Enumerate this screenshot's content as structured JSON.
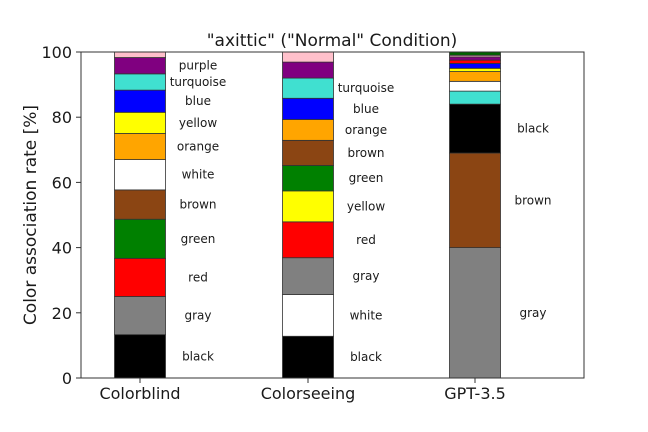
{
  "chart_data": {
    "type": "bar",
    "stacked": true,
    "title": "\"axittic\" (\"Normal\" Condition)",
    "xlabel": "",
    "ylabel": "Color association rate [%]",
    "ylim": [
      0,
      100
    ],
    "yticks": [
      "0",
      "20",
      "40",
      "60",
      "80",
      "100"
    ],
    "grid": false,
    "categories": [
      "Colorblind",
      "Colorseeing",
      "GPT-3.5"
    ],
    "color_map": {
      "black": "#000000",
      "gray": "#808080",
      "white": "#ffffff",
      "red": "#ff0000",
      "green": "#008000",
      "brown": "#8b4513",
      "orange": "#ffa500",
      "yellow": "#ffff00",
      "blue": "#0000ff",
      "turquoise": "#40e0d0",
      "purple": "#800080",
      "pink": "#ffc0cb",
      "darkgreen": "#006400"
    },
    "stacks": [
      {
        "category": "Colorblind",
        "segments": [
          {
            "color": "black",
            "label": "black",
            "value": 13.3
          },
          {
            "color": "gray",
            "label": "gray",
            "value": 11.7
          },
          {
            "color": "red",
            "label": "red",
            "value": 11.7
          },
          {
            "color": "green",
            "label": "green",
            "value": 12.0
          },
          {
            "color": "brown",
            "label": "brown",
            "value": 9.0
          },
          {
            "color": "white",
            "label": "white",
            "value": 9.3
          },
          {
            "color": "orange",
            "label": "orange",
            "value": 8.0
          },
          {
            "color": "yellow",
            "label": "yellow",
            "value": 6.5
          },
          {
            "color": "blue",
            "label": "blue",
            "value": 6.8
          },
          {
            "color": "turquoise",
            "label": "turquoise",
            "value": 5.0
          },
          {
            "color": "purple",
            "label": "purple",
            "value": 5.0
          },
          {
            "color": "pink",
            "label": "",
            "value": 1.7
          }
        ]
      },
      {
        "category": "Colorseeing",
        "segments": [
          {
            "color": "black",
            "label": "black",
            "value": 12.8
          },
          {
            "color": "white",
            "label": "white",
            "value": 12.8
          },
          {
            "color": "gray",
            "label": "gray",
            "value": 11.3
          },
          {
            "color": "red",
            "label": "red",
            "value": 11.0
          },
          {
            "color": "yellow",
            "label": "yellow",
            "value": 9.5
          },
          {
            "color": "green",
            "label": "green",
            "value": 7.8
          },
          {
            "color": "brown",
            "label": "brown",
            "value": 7.7
          },
          {
            "color": "orange",
            "label": "orange",
            "value": 6.4
          },
          {
            "color": "blue",
            "label": "blue",
            "value": 6.5
          },
          {
            "color": "turquoise",
            "label": "turquoise",
            "value": 6.2
          },
          {
            "color": "purple",
            "label": "",
            "value": 4.9
          },
          {
            "color": "pink",
            "label": "",
            "value": 3.1
          }
        ]
      },
      {
        "category": "GPT-3.5",
        "segments": [
          {
            "color": "gray",
            "label": "gray",
            "value": 40.0
          },
          {
            "color": "brown",
            "label": "brown",
            "value": 29.0
          },
          {
            "color": "black",
            "label": "black",
            "value": 15.0
          },
          {
            "color": "turquoise",
            "label": "",
            "value": 4.0
          },
          {
            "color": "white",
            "label": "",
            "value": 3.0
          },
          {
            "color": "orange",
            "label": "",
            "value": 3.0
          },
          {
            "color": "yellow",
            "label": "",
            "value": 1.0
          },
          {
            "color": "blue",
            "label": "",
            "value": 1.5
          },
          {
            "color": "red",
            "label": "",
            "value": 1.0
          },
          {
            "color": "purple",
            "label": "",
            "value": 1.0
          },
          {
            "color": "pink",
            "label": "",
            "value": 0.5
          },
          {
            "color": "darkgreen",
            "label": "",
            "value": 1.0
          }
        ]
      }
    ]
  }
}
